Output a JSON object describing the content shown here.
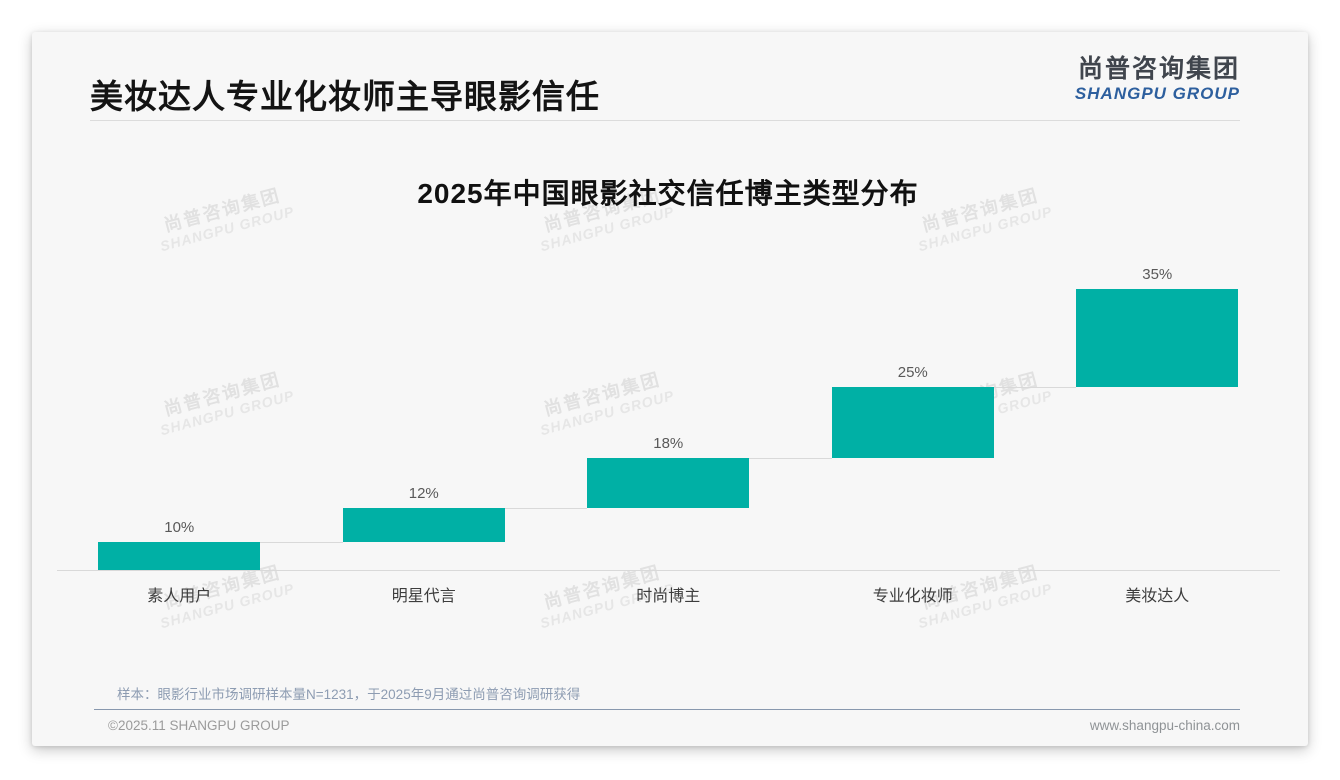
{
  "page": {
    "title": "美妆达人专业化妆师主导眼影信任",
    "logo": {
      "cn": "尚普咨询集团",
      "en": "SHANGPU GROUP"
    },
    "watermark": {
      "line1": "尚普咨询集团",
      "line2": "SHANGPU GROUP"
    },
    "footer": {
      "note": "样本：眼影行业市场调研样本量N=1231，于2025年9月通过尚普咨询调研获得",
      "copyright": "©2025.11 SHANGPU GROUP",
      "website": "www.shangpu-china.com"
    }
  },
  "chart_data": {
    "type": "bar",
    "subtype": "stepped-waterfall",
    "title": "2025年中国眼影社交信任博主类型分布",
    "categories": [
      "素人用户",
      "明星代言",
      "时尚博主",
      "专业化妆师",
      "美妆达人"
    ],
    "values": [
      10,
      12,
      18,
      25,
      35
    ],
    "value_labels": [
      "10%",
      "12%",
      "18%",
      "25%",
      "35%"
    ],
    "cumulative_start": [
      0,
      10,
      22,
      40,
      65
    ],
    "xlabel": "",
    "ylabel": "",
    "ylim": [
      0,
      100
    ],
    "grid": false,
    "legend": "none",
    "bar_color": "#00b0a5",
    "connector_color": "#d9d9d9",
    "axis_color": "#d9d9d9",
    "value_label_color": "#595959",
    "category_label_color": "#3d3d3d"
  }
}
